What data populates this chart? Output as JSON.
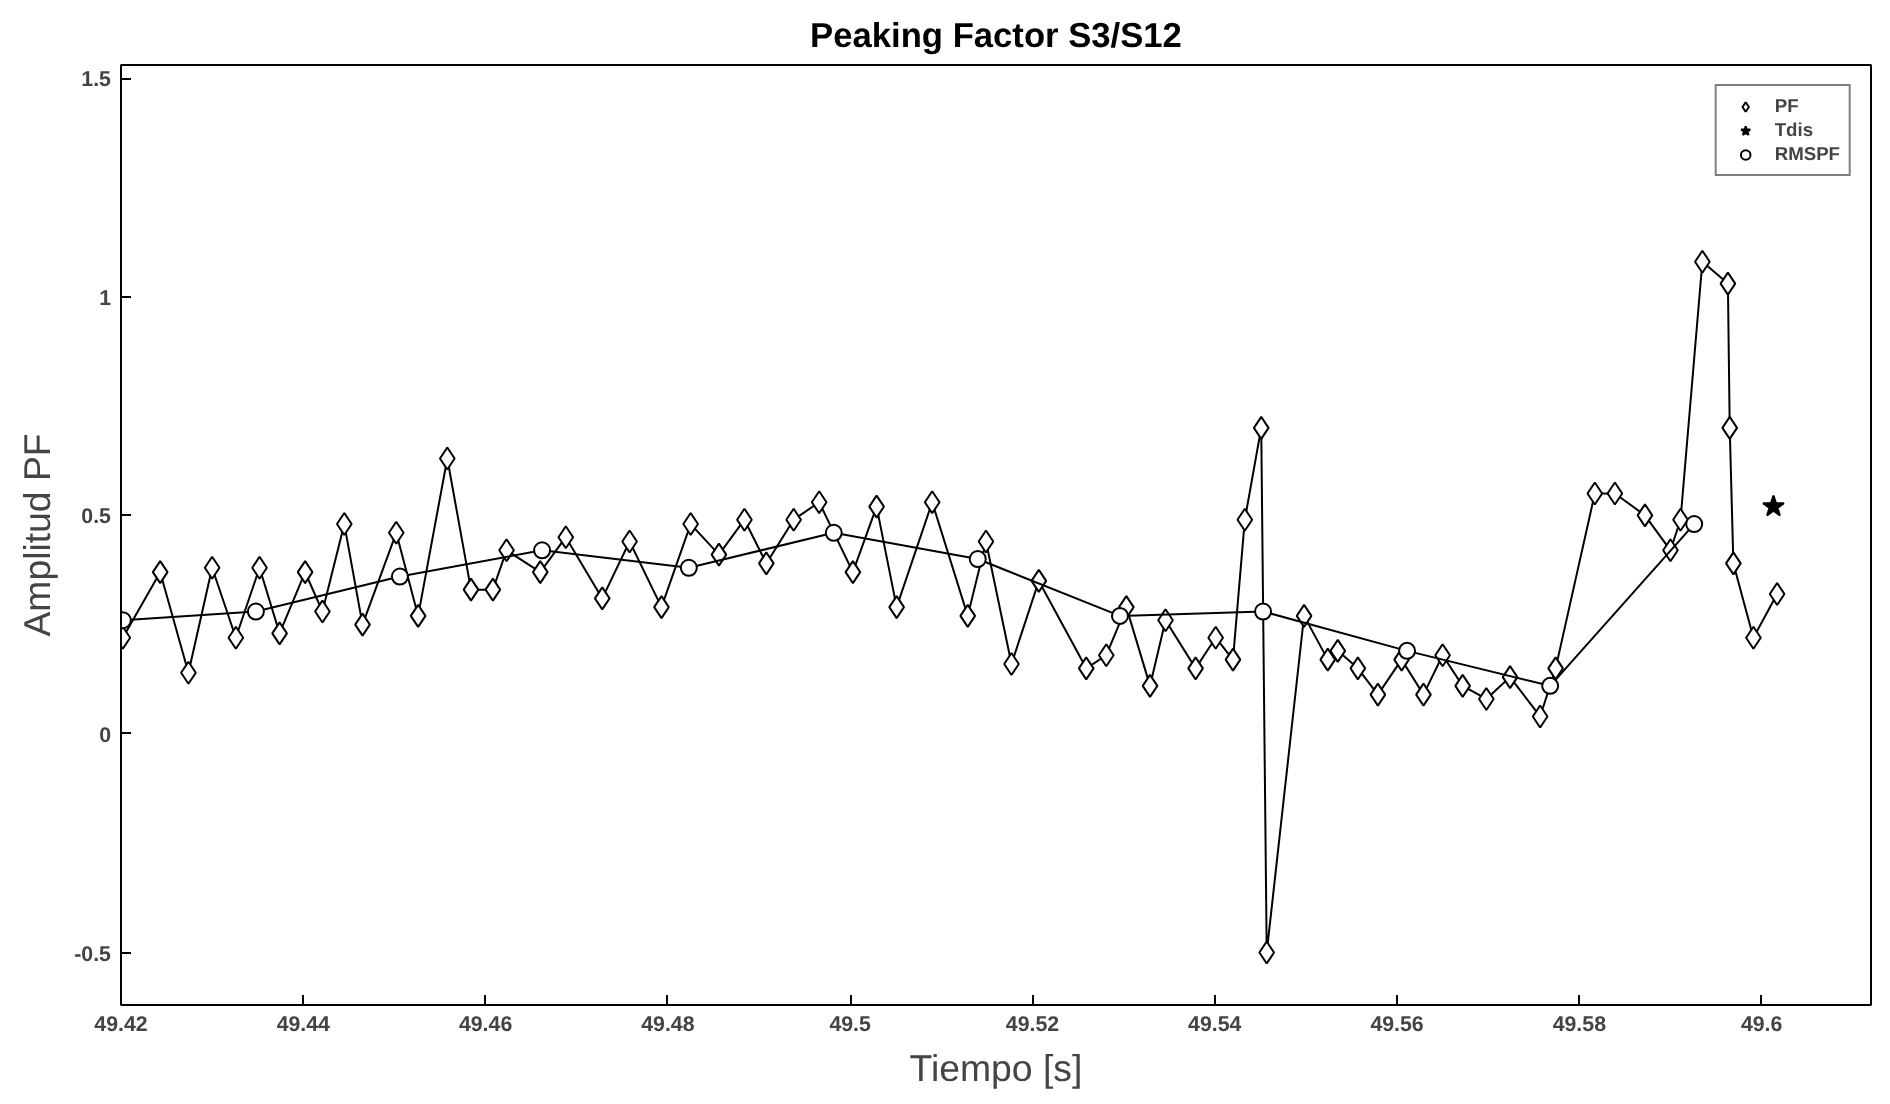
{
  "chart_data": {
    "type": "line",
    "title": "Peaking Factor S3/S12",
    "xlabel": "Tiempo [s]",
    "ylabel": "Amplitud PF",
    "xlim": [
      49.42,
      49.612
    ],
    "ylim": [
      -0.62,
      1.53
    ],
    "xticks": [
      49.42,
      49.44,
      49.46,
      49.48,
      {
        "value": 49.5,
        "label": "49.5"
      },
      49.52,
      49.54,
      49.56,
      49.58,
      {
        "value": 49.6,
        "label": "49.6"
      }
    ],
    "yticks": [
      -0.5,
      0,
      0.5,
      1,
      1.5
    ],
    "grid": false,
    "legend": "top right",
    "series": [
      {
        "name": "PF",
        "color": "#000000",
        "marker": "diamond",
        "x": [
          49.4202,
          49.4243,
          49.4274,
          49.43,
          49.4326,
          49.4352,
          49.4374,
          49.4402,
          49.4421,
          49.4445,
          49.4465,
          49.4502,
          49.4526,
          49.4558,
          49.4584,
          49.4608,
          49.4623,
          49.466,
          49.4688,
          49.4728,
          49.4758,
          49.4793,
          49.4825,
          49.4856,
          49.4884,
          49.4908,
          49.4938,
          49.4966,
          49.5003,
          49.5029,
          49.5051,
          49.509,
          49.5129,
          49.5149,
          49.5177,
          49.5207,
          49.5259,
          49.5281,
          49.5303,
          49.5329,
          49.5346,
          49.5379,
          49.5401,
          49.542,
          49.5433,
          49.5451,
          49.5457,
          49.5498,
          49.5524,
          49.5535,
          49.5557,
          49.5579,
          49.5605,
          49.5629,
          49.565,
          49.5672,
          49.5698,
          49.5724,
          49.5757,
          49.5774,
          49.5817,
          49.5839,
          49.5872,
          49.59,
          49.5911,
          49.5935,
          49.5963,
          49.5965,
          49.5969,
          49.5991,
          49.6017
        ],
        "values": [
          0.22,
          0.37,
          0.14,
          0.38,
          0.22,
          0.38,
          0.23,
          0.37,
          0.28,
          0.48,
          0.25,
          0.46,
          0.27,
          0.63,
          0.33,
          0.33,
          0.42,
          0.37,
          0.45,
          0.31,
          0.44,
          0.29,
          0.48,
          0.41,
          0.49,
          0.39,
          0.49,
          0.53,
          0.37,
          0.52,
          0.29,
          0.53,
          0.27,
          0.44,
          0.16,
          0.35,
          0.15,
          0.18,
          0.29,
          0.11,
          0.26,
          0.15,
          0.22,
          0.17,
          0.49,
          0.7,
          -0.5,
          0.27,
          0.17,
          0.19,
          0.15,
          0.09,
          0.17,
          0.09,
          0.18,
          0.11,
          0.08,
          0.13,
          0.04,
          0.15,
          0.55,
          0.55,
          0.5,
          0.42,
          0.49,
          1.08,
          1.03,
          0.7,
          0.39,
          0.22,
          0.32
        ]
      },
      {
        "name": "Tdis",
        "color": "#000000",
        "marker": "star",
        "x": [
          49.6013
        ],
        "values": [
          0.52
        ]
      },
      {
        "name": "RMSPF",
        "color": "#000000",
        "marker": "circle",
        "x": [
          49.4202,
          49.4348,
          49.4506,
          49.4662,
          49.4823,
          49.4982,
          49.514,
          49.5296,
          49.5453,
          49.5611,
          49.5768,
          49.5926
        ],
        "values": [
          0.26,
          0.28,
          0.36,
          0.42,
          0.38,
          0.46,
          0.4,
          0.27,
          0.28,
          0.19,
          0.11,
          0.48
        ]
      }
    ]
  }
}
